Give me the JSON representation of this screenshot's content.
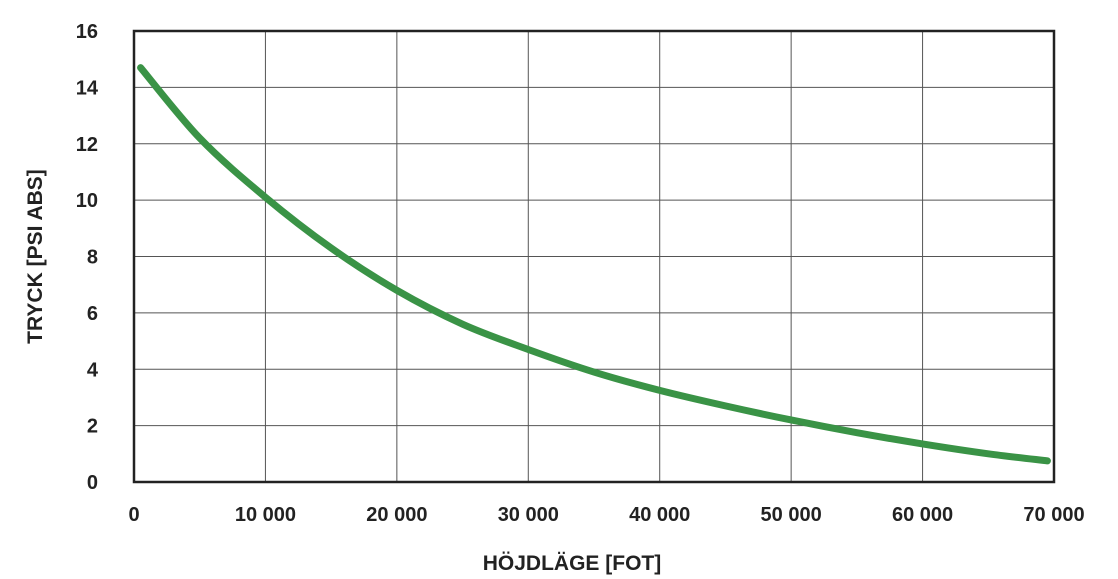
{
  "chart_data": {
    "type": "line",
    "title": "",
    "xlabel": "HÖJDLÄGE [FOT]",
    "ylabel": "TRYCK [PSI ABS]",
    "xlim": [
      0,
      70000
    ],
    "ylim": [
      0,
      16
    ],
    "x_ticks": [
      0,
      10000,
      20000,
      30000,
      40000,
      50000,
      60000,
      70000
    ],
    "x_tick_labels": [
      "0",
      "10 000",
      "20 000",
      "30 000",
      "40 000",
      "50 000",
      "60 000",
      "70 000"
    ],
    "y_ticks": [
      0,
      2,
      4,
      6,
      8,
      10,
      12,
      14,
      16
    ],
    "y_tick_labels": [
      "0",
      "2",
      "4",
      "6",
      "8",
      "10",
      "12",
      "14",
      "16"
    ],
    "grid": true,
    "legend": "none",
    "series": [
      {
        "color": "#3a9346",
        "points": [
          {
            "x": 500,
            "y": 14.7
          },
          {
            "x": 5000,
            "y": 12.2
          },
          {
            "x": 10000,
            "y": 10.1
          },
          {
            "x": 15000,
            "y": 8.3
          },
          {
            "x": 20000,
            "y": 6.8
          },
          {
            "x": 25000,
            "y": 5.6
          },
          {
            "x": 30000,
            "y": 4.7
          },
          {
            "x": 35000,
            "y": 3.9
          },
          {
            "x": 40000,
            "y": 3.25
          },
          {
            "x": 45000,
            "y": 2.7
          },
          {
            "x": 50000,
            "y": 2.2
          },
          {
            "x": 55000,
            "y": 1.75
          },
          {
            "x": 60000,
            "y": 1.35
          },
          {
            "x": 65000,
            "y": 1.0
          },
          {
            "x": 69500,
            "y": 0.75
          }
        ]
      }
    ]
  }
}
